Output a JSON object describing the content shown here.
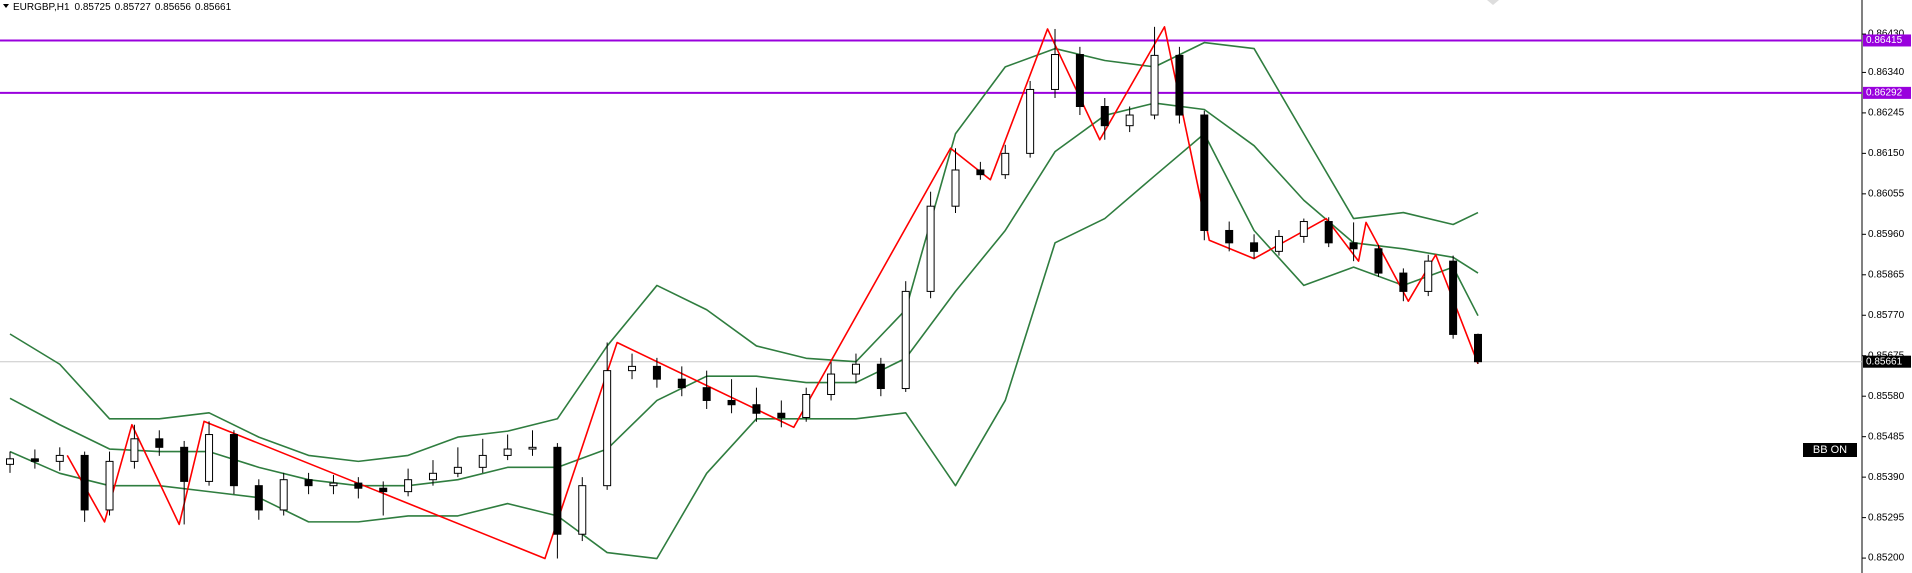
{
  "chart_data": {
    "type": "candlestick",
    "title": "EURGBP,H1",
    "indicator_label": "BB ON",
    "up_color": "#ffffff",
    "down_color": "#000000",
    "ylim": [
      0.85165,
      0.8651
    ],
    "yticks": [
      {
        "value": 0.8643,
        "label": "0.86430"
      },
      {
        "value": 0.8634,
        "label": "0.86340"
      },
      0.86245,
      {
        "value": 0.8615,
        "label": "0.86150"
      },
      0.86055,
      {
        "value": 0.8596,
        "label": "0.85960"
      },
      0.85865,
      {
        "value": 0.8577,
        "label": "0.85770"
      },
      0.85675,
      {
        "value": 0.8558,
        "label": "0.85580"
      },
      0.85485,
      {
        "value": 0.8539,
        "label": "0.85390"
      },
      0.85295,
      {
        "value": 0.852,
        "label": "0.85200"
      }
    ],
    "open": [
      0.8542,
      0.85433,
      0.85427,
      0.85441,
      0.85313,
      0.85427,
      0.8548,
      0.8546,
      0.8538,
      0.8549,
      0.8537,
      0.85313,
      0.85384,
      0.8537,
      0.85376,
      0.85364,
      0.85356,
      0.85384,
      0.85399,
      0.85413,
      0.85441,
      0.85456,
      0.8546,
      0.85256,
      0.8537,
      0.8564,
      0.8565,
      0.8562,
      0.856,
      0.8557,
      0.8556,
      0.8554,
      0.8553,
      0.85584,
      0.85632,
      0.85655,
      0.85598,
      0.85826,
      0.86026,
      0.86111,
      0.861,
      0.8615,
      0.863,
      0.86382,
      0.8626,
      0.86215,
      0.8624,
      0.8638,
      0.8624,
      0.85969,
      0.8594,
      0.8592,
      0.85955,
      0.8599,
      0.8594,
      0.85926,
      0.85869,
      0.85826,
      0.85897,
      0.85725
    ],
    "high": [
      0.8545,
      0.85455,
      0.8546,
      0.8545,
      0.8545,
      0.85513,
      0.855,
      0.85475,
      0.85521,
      0.855,
      0.85385,
      0.854,
      0.854,
      0.85395,
      0.8539,
      0.8538,
      0.8541,
      0.8543,
      0.8546,
      0.8548,
      0.8549,
      0.855,
      0.8547,
      0.8539,
      0.85706,
      0.8568,
      0.8567,
      0.8565,
      0.8564,
      0.8562,
      0.856,
      0.8557,
      0.856,
      0.8566,
      0.8568,
      0.8567,
      0.8585,
      0.8606,
      0.86162,
      0.8613,
      0.8617,
      0.8632,
      0.86442,
      0.864,
      0.8628,
      0.8626,
      0.86447,
      0.864,
      0.8625,
      0.8599,
      0.8596,
      0.8597,
      0.85997,
      0.86,
      0.85988,
      0.85935,
      0.8588,
      0.85912,
      0.8591,
      0.85727
    ],
    "low": [
      0.854,
      0.8541,
      0.85405,
      0.85285,
      0.853,
      0.8541,
      0.8544,
      0.85279,
      0.8537,
      0.8535,
      0.8529,
      0.853,
      0.8535,
      0.8535,
      0.8534,
      0.853,
      0.85345,
      0.8537,
      0.8539,
      0.854,
      0.8543,
      0.8544,
      0.85199,
      0.8524,
      0.8536,
      0.8562,
      0.856,
      0.8558,
      0.8555,
      0.8554,
      0.8552,
      0.85507,
      0.8552,
      0.8557,
      0.8561,
      0.8558,
      0.8559,
      0.8581,
      0.8601,
      0.86088,
      0.8609,
      0.8614,
      0.8628,
      0.8624,
      0.86182,
      0.862,
      0.8623,
      0.8622,
      0.85946,
      0.8592,
      0.85903,
      0.8591,
      0.8594,
      0.8593,
      0.85897,
      0.8586,
      0.85803,
      0.85815,
      0.85715,
      0.85656
    ],
    "close": [
      0.85433,
      0.85427,
      0.85441,
      0.85313,
      0.85427,
      0.8548,
      0.8546,
      0.8538,
      0.8549,
      0.8537,
      0.85313,
      0.85384,
      0.8537,
      0.85376,
      0.85364,
      0.85356,
      0.85384,
      0.85399,
      0.85413,
      0.85441,
      0.85456,
      0.8546,
      0.85256,
      0.8537,
      0.8564,
      0.8565,
      0.8562,
      0.856,
      0.8557,
      0.8556,
      0.8554,
      0.8553,
      0.85584,
      0.85632,
      0.85655,
      0.85598,
      0.85826,
      0.86026,
      0.86111,
      0.861,
      0.8615,
      0.863,
      0.86382,
      0.8626,
      0.86215,
      0.8624,
      0.8638,
      0.8624,
      0.85969,
      0.8594,
      0.8592,
      0.85955,
      0.8599,
      0.8594,
      0.85926,
      0.85869,
      0.85826,
      0.85897,
      0.85725,
      0.85661
    ],
    "bands": {
      "color": "#2f7d3f",
      "x": [
        0,
        2,
        4,
        6,
        8,
        10,
        12,
        14,
        16,
        18,
        20,
        22,
        24,
        26,
        28,
        30,
        32,
        34,
        36,
        38,
        40,
        42,
        44,
        46,
        48,
        50,
        52,
        54,
        56,
        58,
        59
      ],
      "upper": [
        0.85726,
        0.85655,
        0.85527,
        0.85527,
        0.85541,
        0.85484,
        0.85441,
        0.85427,
        0.85441,
        0.85484,
        0.85498,
        0.85527,
        0.85698,
        0.8584,
        0.85783,
        0.85698,
        0.85669,
        0.85661,
        0.85783,
        0.86196,
        0.86353,
        0.86396,
        0.86368,
        0.86353,
        0.8641,
        0.86396,
        0.86196,
        0.85997,
        0.86011,
        0.85983,
        0.86011
      ],
      "middle": [
        0.85575,
        0.85513,
        0.85456,
        0.8545,
        0.8545,
        0.85413,
        0.85384,
        0.8537,
        0.8537,
        0.85384,
        0.85413,
        0.85413,
        0.85456,
        0.8557,
        0.85627,
        0.85627,
        0.85612,
        0.85612,
        0.85669,
        0.85826,
        0.85969,
        0.86154,
        0.86239,
        0.86268,
        0.86253,
        0.86168,
        0.8604,
        0.8594,
        0.85926,
        0.85906,
        0.85869
      ],
      "lower": [
        0.8545,
        0.85399,
        0.8537,
        0.8537,
        0.85356,
        0.85342,
        0.85285,
        0.85285,
        0.85299,
        0.85299,
        0.85328,
        0.85299,
        0.85213,
        0.85199,
        0.85399,
        0.85527,
        0.85527,
        0.85527,
        0.85541,
        0.8537,
        0.8557,
        0.8594,
        0.85997,
        0.86097,
        0.86196,
        0.85969,
        0.8584,
        0.85883,
        0.8584,
        0.85883,
        0.85769
      ]
    },
    "zigzag": {
      "color": "#ff0000",
      "x": [
        2.3,
        3.8,
        4.9,
        6.8,
        7.8,
        21.5,
        24.4,
        31.5,
        37.8,
        39.4,
        41.7,
        43.8,
        46.4,
        48.2,
        50,
        52.9,
        54.2,
        54.5,
        56.2,
        57.3,
        59
      ],
      "values": [
        0.85441,
        0.85285,
        0.85513,
        0.85279,
        0.85521,
        0.85199,
        0.85706,
        0.85507,
        0.86162,
        0.86088,
        0.86442,
        0.86182,
        0.86447,
        0.85946,
        0.85903,
        0.85997,
        0.85897,
        0.85988,
        0.85803,
        0.85912,
        0.85656
      ]
    },
    "levels": [
      {
        "value": 0.86415,
        "color": "#9900dd"
      },
      {
        "value": 0.86292,
        "color": "#9900dd"
      }
    ],
    "last_price_color": "#c8c8c8"
  }
}
